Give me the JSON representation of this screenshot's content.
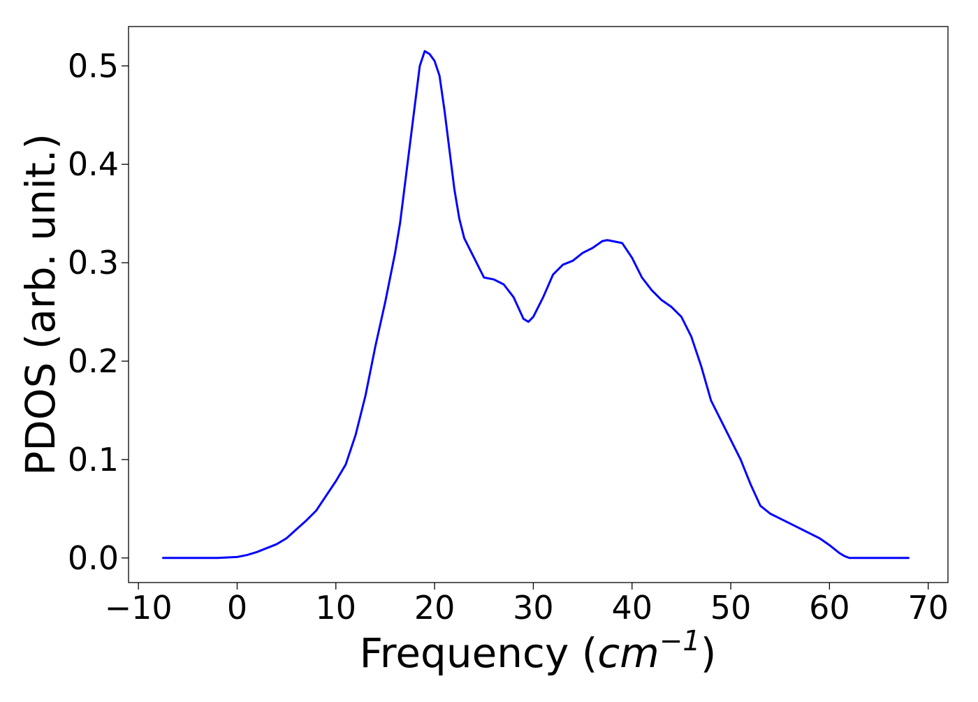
{
  "chart_data": {
    "type": "line",
    "title": "",
    "xlabel_main": "Frequency (",
    "xlabel_var": "cm",
    "xlabel_sup": "−1",
    "xlabel_close": ")",
    "ylabel": "PDOS (arb. unit.)",
    "xlim": [
      -11,
      72
    ],
    "ylim": [
      -0.025,
      0.54
    ],
    "xticks": [
      -10,
      0,
      10,
      20,
      30,
      40,
      50,
      60,
      70
    ],
    "xtick_labels": [
      "−10",
      "0",
      "10",
      "20",
      "30",
      "40",
      "50",
      "60",
      "70"
    ],
    "yticks": [
      0.0,
      0.1,
      0.2,
      0.3,
      0.4,
      0.5
    ],
    "ytick_labels": [
      "0.0",
      "0.1",
      "0.2",
      "0.3",
      "0.4",
      "0.5"
    ],
    "grid": false,
    "legend": "none",
    "series": [
      {
        "color": "#0000ff",
        "x": [
          -7.5,
          -5,
          -2,
          0,
          1,
          2,
          3,
          4,
          5,
          6,
          7,
          8,
          9,
          10,
          11,
          12,
          13,
          14,
          15,
          16,
          16.5,
          17,
          17.5,
          18,
          18.5,
          19,
          19.5,
          20,
          20.5,
          21,
          21.5,
          22,
          22.5,
          23,
          24,
          25,
          26,
          27,
          28,
          29,
          29.5,
          30,
          31,
          32,
          33,
          34,
          35,
          36,
          37,
          37.5,
          38,
          39,
          40,
          41,
          42,
          43,
          44,
          45,
          46,
          47,
          48,
          49,
          50,
          51,
          52,
          53,
          54,
          55,
          56,
          57,
          58,
          59,
          60,
          61,
          61.5,
          62,
          63,
          65,
          68
        ],
        "y": [
          0.0,
          0.0,
          0.0,
          0.001,
          0.003,
          0.006,
          0.01,
          0.014,
          0.02,
          0.029,
          0.038,
          0.048,
          0.063,
          0.078,
          0.095,
          0.125,
          0.165,
          0.215,
          0.26,
          0.31,
          0.34,
          0.38,
          0.42,
          0.46,
          0.5,
          0.515,
          0.512,
          0.505,
          0.49,
          0.455,
          0.415,
          0.375,
          0.345,
          0.325,
          0.305,
          0.285,
          0.283,
          0.278,
          0.265,
          0.243,
          0.24,
          0.245,
          0.265,
          0.288,
          0.298,
          0.302,
          0.31,
          0.315,
          0.322,
          0.323,
          0.322,
          0.32,
          0.305,
          0.285,
          0.272,
          0.262,
          0.255,
          0.245,
          0.225,
          0.195,
          0.16,
          0.14,
          0.12,
          0.1,
          0.075,
          0.053,
          0.045,
          0.04,
          0.035,
          0.03,
          0.025,
          0.02,
          0.013,
          0.005,
          0.002,
          0.0,
          0.0,
          0.0,
          0.0
        ]
      }
    ]
  }
}
